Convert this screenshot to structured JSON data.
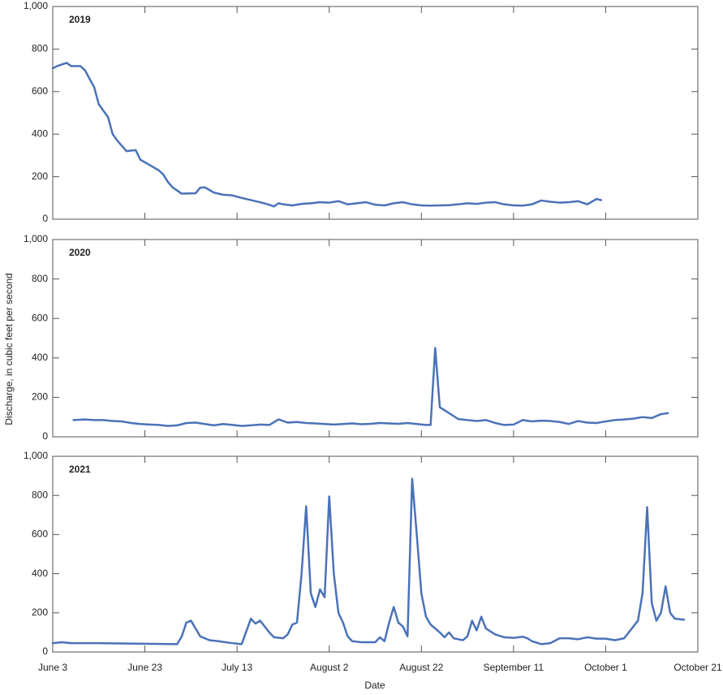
{
  "axis_labels": {
    "x": "Date",
    "y": "Discharge, in cubic feet per second"
  },
  "chart_data": [
    {
      "type": "line",
      "title": "2019",
      "color": "#4a72b8",
      "x": [
        0,
        1,
        3,
        4,
        6,
        7,
        9,
        10,
        12,
        13,
        14,
        16,
        18,
        19,
        21,
        23,
        24,
        25,
        26,
        28,
        31,
        32,
        33,
        35,
        37,
        39,
        41,
        43,
        45,
        47,
        48,
        49,
        50,
        52,
        54,
        56,
        58,
        60,
        62,
        64,
        66,
        68,
        70,
        72,
        74,
        76,
        78,
        80,
        82,
        84,
        86,
        88,
        90,
        92,
        94,
        96,
        98,
        100,
        102,
        104,
        106,
        108,
        110,
        112,
        114,
        116,
        118,
        119
      ],
      "values": [
        710,
        720,
        735,
        720,
        720,
        700,
        620,
        540,
        480,
        400,
        370,
        320,
        325,
        280,
        255,
        230,
        210,
        175,
        150,
        120,
        122,
        148,
        150,
        125,
        115,
        112,
        100,
        90,
        80,
        68,
        60,
        75,
        70,
        65,
        72,
        75,
        80,
        78,
        85,
        70,
        75,
        80,
        68,
        65,
        75,
        80,
        70,
        65,
        64,
        65,
        66,
        70,
        75,
        72,
        78,
        80,
        70,
        65,
        64,
        70,
        88,
        82,
        78,
        80,
        85,
        70,
        95,
        90
      ],
      "xlim": [
        0,
        140
      ],
      "xticks": [
        0,
        20,
        40,
        60,
        80,
        100,
        120,
        140
      ],
      "ylim": [
        0,
        1000
      ],
      "yticks": [
        0,
        200,
        400,
        600,
        800,
        {
          "value": 1000,
          "label": "1,000"
        }
      ]
    },
    {
      "type": "line",
      "title": "2020",
      "color": "#4a72b8",
      "x": [
        4.5,
        7,
        9,
        11,
        13,
        15,
        17,
        19,
        21,
        23,
        25,
        27,
        29,
        31,
        33,
        35,
        37,
        39,
        41,
        43,
        45,
        47,
        49,
        51,
        53,
        55,
        57,
        59,
        61,
        63,
        65,
        67,
        69,
        71,
        73,
        75,
        77,
        79,
        81,
        82,
        83,
        84,
        86,
        88,
        90,
        92,
        94,
        96,
        98,
        100,
        102,
        104,
        106,
        108,
        110,
        112,
        114,
        116,
        118,
        120,
        122,
        124,
        126,
        128,
        130,
        132,
        133.5
      ],
      "values": [
        85,
        88,
        85,
        85,
        80,
        78,
        70,
        65,
        62,
        60,
        55,
        58,
        70,
        72,
        65,
        58,
        65,
        60,
        55,
        58,
        62,
        60,
        88,
        72,
        75,
        70,
        68,
        65,
        62,
        65,
        68,
        64,
        66,
        70,
        68,
        66,
        70,
        65,
        60,
        60,
        450,
        150,
        120,
        90,
        85,
        80,
        85,
        70,
        60,
        62,
        85,
        78,
        82,
        80,
        75,
        65,
        80,
        72,
        70,
        78,
        85,
        88,
        92,
        100,
        95,
        115,
        120
      ],
      "xlim": [
        0,
        140
      ],
      "xticks": [
        0,
        20,
        40,
        60,
        80,
        100,
        120,
        140
      ],
      "ylim": [
        0,
        1000
      ],
      "yticks": [
        0,
        200,
        400,
        600,
        800,
        {
          "value": 1000,
          "label": "1,000"
        }
      ]
    },
    {
      "type": "line",
      "title": "2021",
      "color": "#4a72b8",
      "x": [
        0,
        2,
        4,
        10,
        20,
        27,
        28,
        29,
        30,
        31,
        32,
        34,
        36,
        38,
        41,
        43,
        44,
        45,
        47,
        48,
        50,
        51,
        52,
        53,
        54,
        55,
        56,
        57,
        58,
        59,
        60,
        61,
        62,
        63,
        64,
        65,
        67,
        70,
        71,
        72,
        73,
        74,
        75,
        76,
        77,
        78,
        79,
        80,
        81,
        82,
        84,
        85,
        86,
        87,
        88,
        89,
        90,
        91,
        92,
        93,
        94,
        96,
        98,
        100,
        102,
        103,
        104,
        106,
        108,
        110,
        112,
        114,
        116,
        118,
        120,
        122,
        124,
        126,
        127,
        128,
        129,
        130,
        131,
        132,
        133,
        134,
        135,
        137
      ],
      "values": [
        45,
        50,
        45,
        45,
        42,
        40,
        80,
        150,
        160,
        120,
        80,
        60,
        55,
        48,
        40,
        170,
        145,
        160,
        100,
        75,
        70,
        90,
        140,
        150,
        400,
        745,
        300,
        230,
        320,
        280,
        795,
        400,
        200,
        150,
        80,
        55,
        50,
        50,
        75,
        55,
        150,
        230,
        150,
        130,
        80,
        885,
        600,
        300,
        180,
        140,
        100,
        75,
        100,
        70,
        65,
        60,
        80,
        160,
        110,
        180,
        120,
        90,
        75,
        72,
        78,
        70,
        55,
        40,
        45,
        70,
        70,
        65,
        75,
        68,
        68,
        60,
        70,
        130,
        160,
        300,
        740,
        250,
        160,
        200,
        335,
        200,
        170,
        165
      ],
      "xlim": [
        0,
        140
      ],
      "xticks": [
        {
          "value": 0,
          "label": "June 3"
        },
        {
          "value": 20,
          "label": "June 23"
        },
        {
          "value": 40,
          "label": "July 13"
        },
        {
          "value": 60,
          "label": "August 2"
        },
        {
          "value": 80,
          "label": "August 22"
        },
        {
          "value": 100,
          "label": "September 11"
        },
        {
          "value": 120,
          "label": "October 1"
        },
        {
          "value": 140,
          "label": "October 21"
        }
      ],
      "ylim": [
        0,
        1000
      ],
      "yticks": [
        0,
        200,
        400,
        600,
        800,
        {
          "value": 1000,
          "label": "1,000"
        }
      ]
    }
  ]
}
